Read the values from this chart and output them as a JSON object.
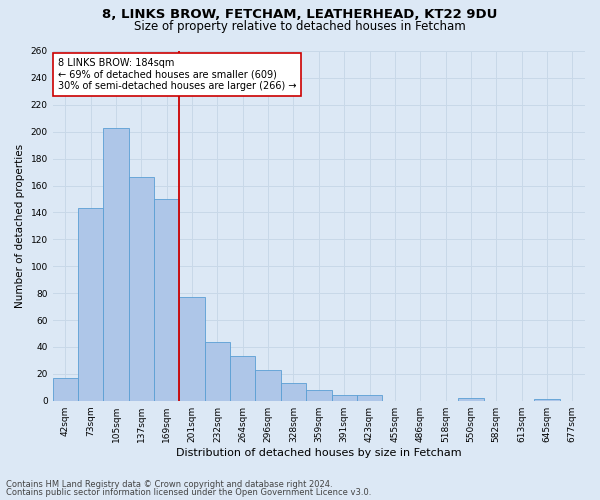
{
  "title1": "8, LINKS BROW, FETCHAM, LEATHERHEAD, KT22 9DU",
  "title2": "Size of property relative to detached houses in Fetcham",
  "xlabel": "Distribution of detached houses by size in Fetcham",
  "ylabel": "Number of detached properties",
  "categories": [
    "42sqm",
    "73sqm",
    "105sqm",
    "137sqm",
    "169sqm",
    "201sqm",
    "232sqm",
    "264sqm",
    "296sqm",
    "328sqm",
    "359sqm",
    "391sqm",
    "423sqm",
    "455sqm",
    "486sqm",
    "518sqm",
    "550sqm",
    "582sqm",
    "613sqm",
    "645sqm",
    "677sqm"
  ],
  "values": [
    17,
    143,
    203,
    166,
    150,
    77,
    44,
    33,
    23,
    13,
    8,
    4,
    4,
    0,
    0,
    0,
    2,
    0,
    0,
    1,
    0
  ],
  "bar_color": "#aec6e8",
  "bar_edge_color": "#5a9fd4",
  "vline_index": 5,
  "vline_color": "#cc0000",
  "annotation_text": "8 LINKS BROW: 184sqm\n← 69% of detached houses are smaller (609)\n30% of semi-detached houses are larger (266) →",
  "annotation_box_color": "#ffffff",
  "annotation_box_edgecolor": "#cc0000",
  "ylim": [
    0,
    260
  ],
  "yticks": [
    0,
    20,
    40,
    60,
    80,
    100,
    120,
    140,
    160,
    180,
    200,
    220,
    240,
    260
  ],
  "grid_color": "#c8d8e8",
  "bg_color": "#dce8f5",
  "footer1": "Contains HM Land Registry data © Crown copyright and database right 2024.",
  "footer2": "Contains public sector information licensed under the Open Government Licence v3.0.",
  "title1_fontsize": 9.5,
  "title2_fontsize": 8.5,
  "xlabel_fontsize": 8,
  "ylabel_fontsize": 7.5,
  "tick_fontsize": 6.5,
  "annotation_fontsize": 7,
  "footer_fontsize": 6
}
